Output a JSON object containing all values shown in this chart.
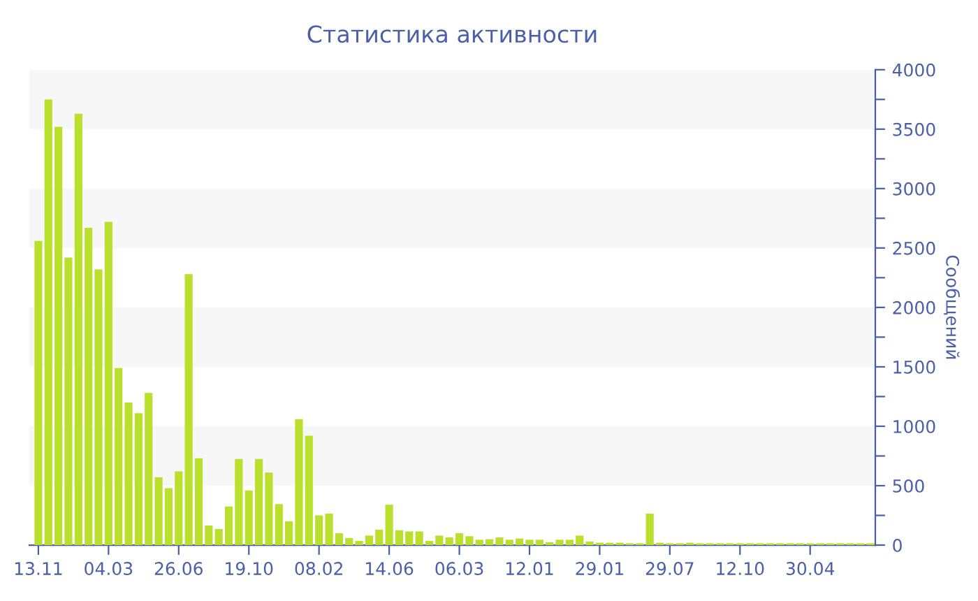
{
  "chart_data": {
    "type": "bar",
    "title": "Статистика активности",
    "ylabel": "Сообщений",
    "categories": [
      "13.11",
      null,
      null,
      null,
      null,
      null,
      null,
      "04.03",
      null,
      null,
      null,
      null,
      null,
      null,
      "26.06",
      null,
      null,
      null,
      null,
      null,
      null,
      "19.10",
      null,
      null,
      null,
      null,
      null,
      null,
      "08.02",
      null,
      null,
      null,
      null,
      null,
      null,
      "14.06",
      null,
      null,
      null,
      null,
      null,
      null,
      "06.03",
      null,
      null,
      null,
      null,
      null,
      null,
      "12.01",
      null,
      null,
      null,
      null,
      null,
      null,
      "29.01",
      null,
      null,
      null,
      null,
      null,
      null,
      "29.07",
      null,
      null,
      null,
      null,
      null,
      null,
      "12.10",
      null,
      null,
      null,
      null,
      null,
      null,
      "30.04",
      null,
      null,
      null,
      null,
      null,
      null
    ],
    "values": [
      2560,
      3750,
      3520,
      2420,
      3630,
      2670,
      2320,
      2720,
      1490,
      1200,
      1110,
      1280,
      570,
      480,
      620,
      2280,
      730,
      165,
      135,
      325,
      725,
      460,
      725,
      610,
      345,
      200,
      1060,
      920,
      250,
      265,
      100,
      60,
      35,
      80,
      130,
      340,
      125,
      115,
      115,
      35,
      80,
      65,
      100,
      75,
      45,
      50,
      65,
      45,
      55,
      45,
      45,
      25,
      45,
      45,
      80,
      30,
      20,
      20,
      20,
      15,
      15,
      265,
      20,
      15,
      15,
      20,
      15,
      15,
      15,
      15,
      15,
      15,
      15,
      15,
      15,
      15,
      15,
      15,
      15,
      15,
      15,
      15,
      15,
      15
    ],
    "color": "#bbdf2d",
    "ylim": [
      0,
      4000
    ],
    "yticks": [
      0,
      {
        "value": 250,
        "label": null
      },
      500,
      {
        "value": 750,
        "label": null
      },
      1000,
      {
        "value": 1250,
        "label": null
      },
      1500,
      {
        "value": 1750,
        "label": null
      },
      2000,
      {
        "value": 2250,
        "label": null
      },
      2500,
      {
        "value": 2750,
        "label": null
      },
      3000,
      {
        "value": 3250,
        "label": null
      },
      3500,
      {
        "value": 3750,
        "label": null
      },
      4000
    ],
    "bands": [
      {
        "axis": "y",
        "from": 500,
        "to": 1000,
        "color": "#f7f7f7"
      },
      {
        "axis": "y",
        "from": 1500,
        "to": 2000,
        "color": "#f7f7f7"
      },
      {
        "axis": "y",
        "from": 2500,
        "to": 3000,
        "color": "#f7f7f7"
      },
      {
        "axis": "y",
        "from": 3500,
        "to": 4000,
        "color": "#f7f7f7"
      }
    ],
    "grid": false,
    "legend": false
  }
}
